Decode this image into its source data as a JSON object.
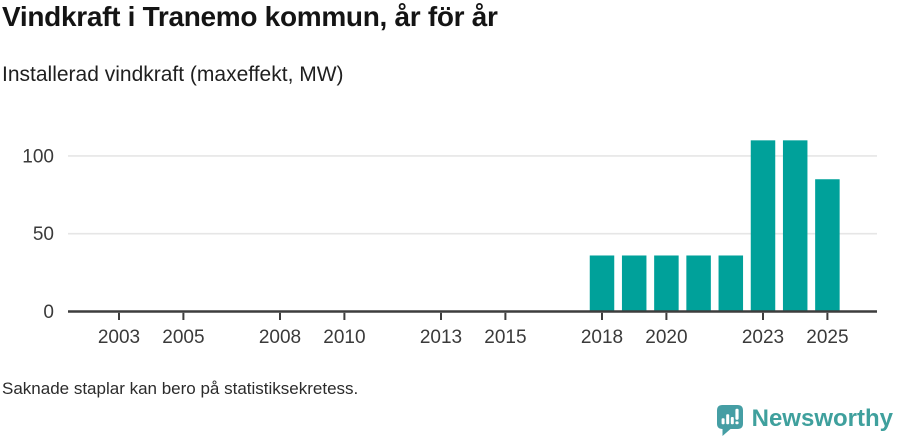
{
  "header": {
    "title": "Vindkraft i Tranemo kommun, år för år",
    "subtitle": "Installerad vindkraft (maxeffekt, MW)"
  },
  "footer": {
    "note": "Saknade staplar kan bero på statistiksekretess.",
    "brand_name": "Newsworthy"
  },
  "colors": {
    "bar": "#00a19a",
    "axis": "#3d3d3d",
    "grid": "#e6e6e6",
    "tick_text": "#3a3a3a",
    "title_text": "#141414",
    "logo": "#459ea4",
    "logo_text": "#3fa09d"
  },
  "chart_data": {
    "type": "bar",
    "title": "Vindkraft i Tranemo kommun, år för år",
    "subtitle": "Installerad vindkraft (maxeffekt, MW)",
    "unit": "MW",
    "x": [
      2018,
      2019,
      2020,
      2021,
      2022,
      2023,
      2024,
      2025
    ],
    "values": [
      36,
      36,
      36,
      36,
      36,
      110,
      110,
      85
    ],
    "x_domain": [
      2002,
      2026
    ],
    "x_ticks": [
      2003,
      2005,
      2008,
      2010,
      2013,
      2015,
      2018,
      2020,
      2023,
      2025
    ],
    "y_ticks": [
      0,
      50,
      100
    ],
    "ylim": [
      0,
      116
    ],
    "grid": "horizontal",
    "legend": "none"
  }
}
